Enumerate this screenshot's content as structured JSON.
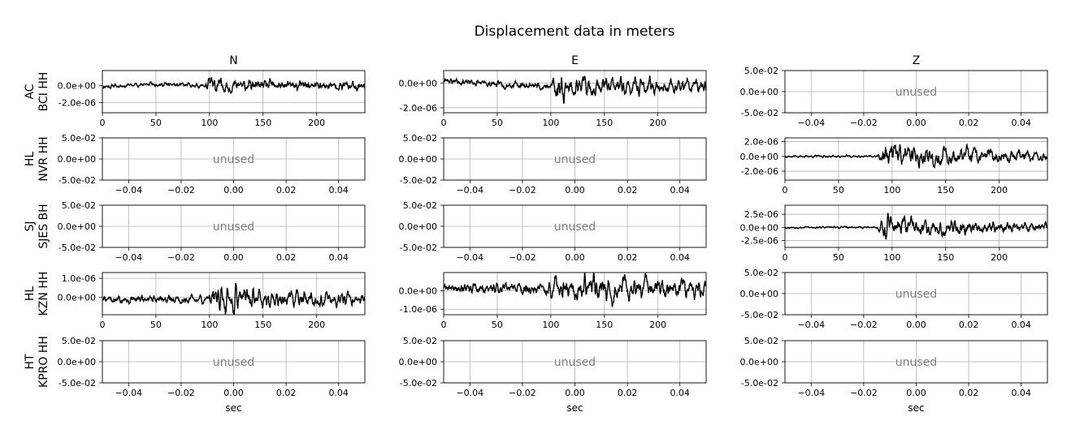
{
  "chart_data": {
    "type": "line",
    "title": "Displacement data in meters",
    "columns": [
      "N",
      "E",
      "Z"
    ],
    "rows": [
      {
        "network": "AC",
        "station": "BCI HH"
      },
      {
        "network": "HL",
        "station": "NVR HH"
      },
      {
        "network": "SJ",
        "station": "SJES BH"
      },
      {
        "network": "HL",
        "station": "KZN HH"
      },
      {
        "network": "HT",
        "station": "KPRO HH"
      }
    ],
    "xlabel": "sec",
    "unused_text": "unused",
    "unused_axes": {
      "xlim": [
        -0.05,
        0.05
      ],
      "ylim": [
        -0.05,
        0.05
      ],
      "xticks": [
        -0.04,
        -0.02,
        0.0,
        0.02,
        0.04
      ],
      "xtick_labels": [
        "−0.04",
        "−0.02",
        "0.00",
        "0.02",
        "0.04"
      ],
      "yticks": [
        -0.05,
        0.0,
        0.05
      ],
      "ytick_labels": [
        "-5.0e-02",
        "0.0e+00",
        "5.0e-02"
      ]
    },
    "grid": true,
    "panels": [
      {
        "row": 0,
        "col": 0,
        "used": true,
        "xlim": [
          0,
          245
        ],
        "ylim": [
          -3.2e-06,
          1.8e-06
        ],
        "xticks": [
          0,
          50,
          100,
          150,
          200
        ],
        "yticks": [
          0,
          -2e-06
        ],
        "ytick_labels": [
          "0.0e+00",
          "-2.0e-06"
        ],
        "amplitude": [
          [
            0,
            3e-07
          ],
          [
            95,
            3e-07
          ],
          [
            100,
            1.3e-06
          ],
          [
            125,
            8e-07
          ],
          [
            245,
            6e-07
          ]
        ],
        "bias": [
          [
            0,
            -1e-07
          ],
          [
            45,
            2e-07
          ],
          [
            90,
            0
          ],
          [
            245,
            0
          ]
        ],
        "seed": 11
      },
      {
        "row": 0,
        "col": 1,
        "used": true,
        "xlim": [
          0,
          245
        ],
        "ylim": [
          -2.4e-06,
          1e-06
        ],
        "xticks": [
          0,
          50,
          100,
          150,
          200
        ],
        "yticks": [
          0,
          -2e-06
        ],
        "ytick_labels": [
          "0.0e+00",
          "-2.0e-06"
        ],
        "amplitude": [
          [
            0,
            3e-07
          ],
          [
            95,
            3e-07
          ],
          [
            105,
            1.3e-06
          ],
          [
            135,
            9e-07
          ],
          [
            245,
            6e-07
          ]
        ],
        "bias": [
          [
            0,
            2.5e-07
          ],
          [
            30,
            0
          ],
          [
            100,
            -3e-07
          ],
          [
            245,
            -3e-07
          ]
        ],
        "seed": 23
      },
      {
        "row": 0,
        "col": 2,
        "used": false
      },
      {
        "row": 1,
        "col": 0,
        "used": false
      },
      {
        "row": 1,
        "col": 1,
        "used": false
      },
      {
        "row": 1,
        "col": 2,
        "used": true,
        "xlim": [
          0,
          245
        ],
        "ylim": [
          -3.2e-06,
          2.5e-06
        ],
        "xticks": [
          0,
          50,
          100,
          150,
          200
        ],
        "yticks": [
          2e-06,
          0,
          -2e-06
        ],
        "ytick_labels": [
          "2.0e-06",
          "0.0e+00",
          "-2.0e-06"
        ],
        "amplitude": [
          [
            0,
            2e-07
          ],
          [
            85,
            2e-07
          ],
          [
            95,
            2.6e-06
          ],
          [
            120,
            1.6e-06
          ],
          [
            245,
            7e-07
          ]
        ],
        "bias": [
          [
            0,
            0
          ],
          [
            245,
            0
          ]
        ],
        "seed": 37
      },
      {
        "row": 2,
        "col": 0,
        "used": false
      },
      {
        "row": 2,
        "col": 1,
        "used": false
      },
      {
        "row": 2,
        "col": 2,
        "used": true,
        "xlim": [
          0,
          245
        ],
        "ylim": [
          -3.8e-06,
          4.2e-06
        ],
        "xticks": [
          0,
          50,
          100,
          150,
          200
        ],
        "yticks": [
          2.5e-06,
          0,
          -2.5e-06
        ],
        "ytick_labels": [
          "2.5e-06",
          "0.0e+00",
          "-2.5e-06"
        ],
        "amplitude": [
          [
            0,
            2.5e-07
          ],
          [
            85,
            2.5e-07
          ],
          [
            95,
            3.4e-06
          ],
          [
            130,
            1.8e-06
          ],
          [
            245,
            9e-07
          ]
        ],
        "bias": [
          [
            0,
            0
          ],
          [
            245,
            0
          ]
        ],
        "seed": 53
      },
      {
        "row": 3,
        "col": 0,
        "used": true,
        "xlim": [
          0,
          245
        ],
        "ylim": [
          -9e-07,
          1.3e-06
        ],
        "xticks": [
          0,
          50,
          100,
          150,
          200
        ],
        "yticks": [
          1e-06,
          0
        ],
        "ytick_labels": [
          "1.0e-06",
          "0.0e+00"
        ],
        "amplitude": [
          [
            0,
            2.5e-07
          ],
          [
            95,
            2.5e-07
          ],
          [
            115,
            9e-07
          ],
          [
            150,
            6e-07
          ],
          [
            245,
            4e-07
          ]
        ],
        "bias": [
          [
            0,
            -1e-07
          ],
          [
            245,
            -1e-07
          ]
        ],
        "seed": 71
      },
      {
        "row": 3,
        "col": 1,
        "used": true,
        "xlim": [
          0,
          245
        ],
        "ylim": [
          -1.3e-06,
          1e-06
        ],
        "xticks": [
          0,
          50,
          100,
          150,
          200
        ],
        "yticks": [
          0,
          -1e-06
        ],
        "ytick_labels": [
          "0.0e+00",
          "-1.0e-06"
        ],
        "amplitude": [
          [
            0,
            3e-07
          ],
          [
            95,
            4e-07
          ],
          [
            110,
            9e-07
          ],
          [
            245,
            6e-07
          ]
        ],
        "bias": [
          [
            0,
            1.5e-07
          ],
          [
            245,
            1e-07
          ]
        ],
        "seed": 89
      },
      {
        "row": 3,
        "col": 2,
        "used": false
      },
      {
        "row": 4,
        "col": 0,
        "used": false
      },
      {
        "row": 4,
        "col": 1,
        "used": false
      },
      {
        "row": 4,
        "col": 2,
        "used": false
      }
    ]
  }
}
